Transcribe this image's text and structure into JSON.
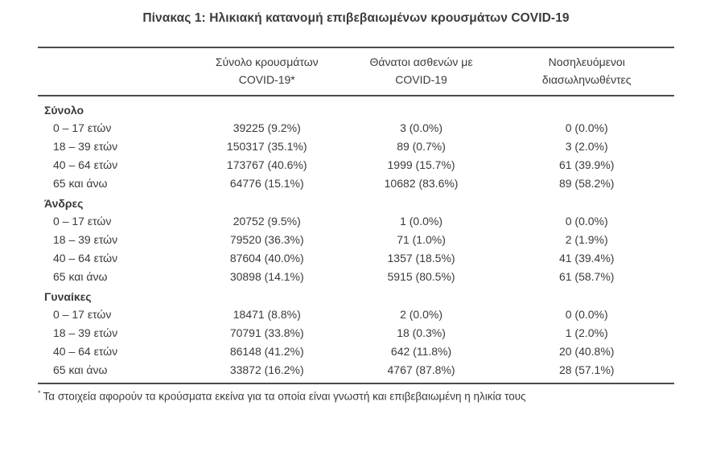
{
  "title": "Πίνακας 1: Ηλικιακή κατανομή επιβεβαιωμένων κρουσμάτων COVID-19",
  "table": {
    "columns": [
      {
        "line1": "Σύνολο κρουσμάτων",
        "line2": "COVID-19*"
      },
      {
        "line1": "Θάνατοι ασθενών με",
        "line2": "COVID-19"
      },
      {
        "line1": "Νοσηλευόμενοι",
        "line2": "διασωληνωθέντες"
      }
    ],
    "sections": [
      {
        "label": "Σύνολο",
        "rows": [
          {
            "age": "0 – 17 ετών",
            "cases": "39225 (9.2%)",
            "deaths": "3 (0.0%)",
            "intubated": "0 (0.0%)"
          },
          {
            "age": "18 – 39 ετών",
            "cases": "150317 (35.1%)",
            "deaths": "89 (0.7%)",
            "intubated": "3 (2.0%)"
          },
          {
            "age": "40 – 64 ετών",
            "cases": "173767 (40.6%)",
            "deaths": "1999 (15.7%)",
            "intubated": "61 (39.9%)"
          },
          {
            "age": "65 και άνω",
            "cases": "64776 (15.1%)",
            "deaths": "10682 (83.6%)",
            "intubated": "89 (58.2%)"
          }
        ]
      },
      {
        "label": "Άνδρες",
        "rows": [
          {
            "age": "0 – 17 ετών",
            "cases": "20752 (9.5%)",
            "deaths": "1 (0.0%)",
            "intubated": "0 (0.0%)"
          },
          {
            "age": "18 – 39 ετών",
            "cases": "79520 (36.3%)",
            "deaths": "71 (1.0%)",
            "intubated": "2 (1.9%)"
          },
          {
            "age": "40 – 64 ετών",
            "cases": "87604 (40.0%)",
            "deaths": "1357 (18.5%)",
            "intubated": "41 (39.4%)"
          },
          {
            "age": "65 και άνω",
            "cases": "30898 (14.1%)",
            "deaths": "5915 (80.5%)",
            "intubated": "61 (58.7%)"
          }
        ]
      },
      {
        "label": "Γυναίκες",
        "rows": [
          {
            "age": "0 – 17 ετών",
            "cases": "18471 (8.8%)",
            "deaths": "2 (0.0%)",
            "intubated": "0 (0.0%)"
          },
          {
            "age": "18 – 39 ετών",
            "cases": "70791 (33.8%)",
            "deaths": "18 (0.3%)",
            "intubated": "1 (2.0%)"
          },
          {
            "age": "40 – 64 ετών",
            "cases": "86148 (41.2%)",
            "deaths": "642 (11.8%)",
            "intubated": "20 (40.8%)"
          },
          {
            "age": "65 και άνω",
            "cases": "33872 (16.2%)",
            "deaths": "4767 (87.8%)",
            "intubated": "28 (57.1%)"
          }
        ]
      }
    ]
  },
  "footnote": {
    "marker": "*",
    "text": "Τα στοιχεία αφορούν τα κρούσματα εκείνα για τα οποία είναι γνωστή και επιβεβαιωμένη η ηλικία τους"
  },
  "colors": {
    "text": "#3a3a3c",
    "rule": "#4c4c4e",
    "background": "#ffffff"
  }
}
